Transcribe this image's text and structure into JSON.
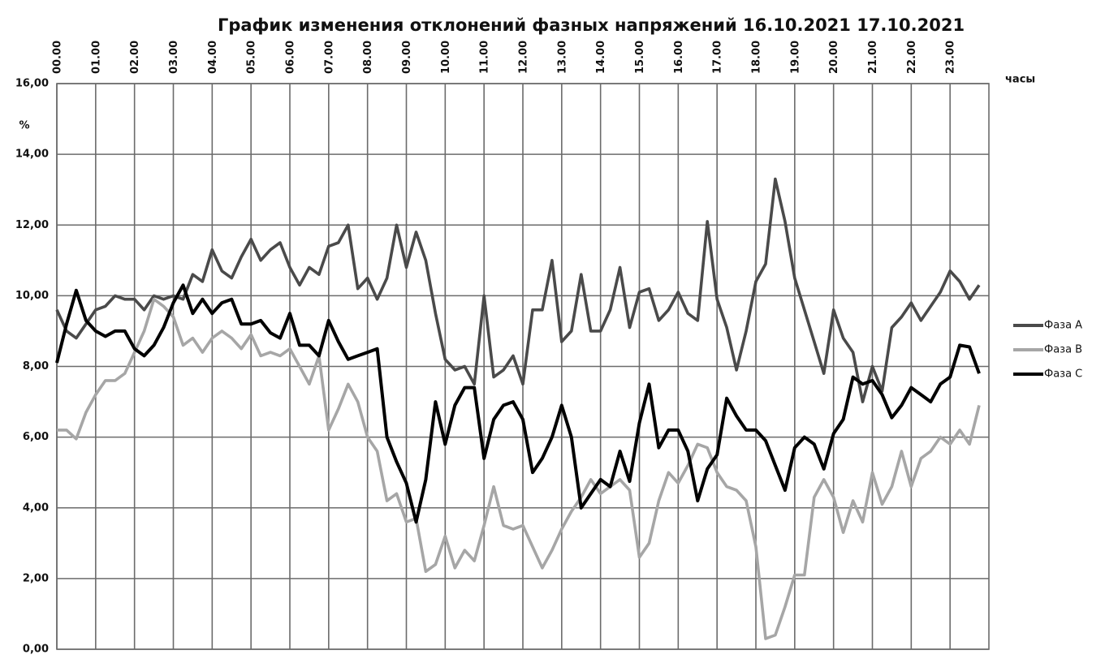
{
  "chart_data": {
    "type": "line",
    "title": "График изменения отклонений фазных напряжений  16.10.2021 17.10.2021",
    "y_label": "%",
    "x_label": "часы",
    "xlim": [
      0,
      24
    ],
    "xticks": [
      {
        "value": 0,
        "label": "00.00"
      },
      {
        "value": 1,
        "label": "01.00"
      },
      {
        "value": 2,
        "label": "02.00"
      },
      {
        "value": 3,
        "label": "03.00"
      },
      {
        "value": 4,
        "label": "04.00"
      },
      {
        "value": 5,
        "label": "05.00"
      },
      {
        "value": 6,
        "label": "06.00"
      },
      {
        "value": 7,
        "label": "07.00"
      },
      {
        "value": 8,
        "label": "08.00"
      },
      {
        "value": 9,
        "label": "09.00"
      },
      {
        "value": 10,
        "label": "10.00"
      },
      {
        "value": 11,
        "label": "11.00"
      },
      {
        "value": 12,
        "label": "12.00"
      },
      {
        "value": 13,
        "label": "13.00"
      },
      {
        "value": 14,
        "label": "14.00"
      },
      {
        "value": 15,
        "label": "15.00"
      },
      {
        "value": 16,
        "label": "16.00"
      },
      {
        "value": 17,
        "label": "17.00"
      },
      {
        "value": 18,
        "label": "18.00"
      },
      {
        "value": 19,
        "label": "19.00"
      },
      {
        "value": 20,
        "label": "20.00"
      },
      {
        "value": 21,
        "label": "21.00"
      },
      {
        "value": 22,
        "label": "22.00"
      },
      {
        "value": 23,
        "label": "23.00"
      }
    ],
    "ylim": [
      0,
      16
    ],
    "yticks": [
      {
        "value": 0,
        "label": "0,00"
      },
      {
        "value": 2,
        "label": "2,00"
      },
      {
        "value": 4,
        "label": "4,00"
      },
      {
        "value": 6,
        "label": "6,00"
      },
      {
        "value": 8,
        "label": "8,00"
      },
      {
        "value": 10,
        "label": "10,00"
      },
      {
        "value": 12,
        "label": "12,00"
      },
      {
        "value": 14,
        "label": "14,00"
      },
      {
        "value": 16,
        "label": "16,00"
      }
    ],
    "grid": true,
    "legend": "right",
    "x": [
      0,
      0.25,
      0.5,
      0.75,
      1,
      1.25,
      1.5,
      1.75,
      2,
      2.25,
      2.5,
      2.75,
      3,
      3.25,
      3.5,
      3.75,
      4,
      4.25,
      4.5,
      4.75,
      5,
      5.25,
      5.5,
      5.75,
      6,
      6.25,
      6.5,
      6.75,
      7,
      7.25,
      7.5,
      7.75,
      8,
      8.25,
      8.5,
      8.75,
      9,
      9.25,
      9.5,
      9.75,
      10,
      10.25,
      10.5,
      10.75,
      11,
      11.25,
      11.5,
      11.75,
      12,
      12.25,
      12.5,
      12.75,
      13,
      13.25,
      13.5,
      13.75,
      14,
      14.25,
      14.5,
      14.75,
      15,
      15.25,
      15.5,
      15.75,
      16,
      16.25,
      16.5,
      16.75,
      17,
      17.25,
      17.5,
      17.75,
      18,
      18.25,
      18.5,
      18.75,
      19,
      19.25,
      19.5,
      19.75,
      20,
      20.25,
      20.5,
      20.75,
      21,
      21.25,
      21.5,
      21.75,
      22,
      22.25,
      22.5,
      22.75,
      23,
      23.25,
      23.5,
      23.75
    ],
    "series": [
      {
        "name": "Фаза А",
        "color": "#4a4a4a",
        "values": [
          9.6,
          9.0,
          8.8,
          9.2,
          9.6,
          9.7,
          10.0,
          9.9,
          9.9,
          9.6,
          10.0,
          9.9,
          10.0,
          9.9,
          10.6,
          10.4,
          11.3,
          10.7,
          10.5,
          11.1,
          11.6,
          11.0,
          11.3,
          11.5,
          10.8,
          10.3,
          10.8,
          10.6,
          11.4,
          11.5,
          12.0,
          10.2,
          10.5,
          9.9,
          10.5,
          12.0,
          10.8,
          11.8,
          11.0,
          9.5,
          8.2,
          7.9,
          8.0,
          7.5,
          10.0,
          7.7,
          7.9,
          8.3,
          7.5,
          9.6,
          9.6,
          11.0,
          8.7,
          9.0,
          10.6,
          9.0,
          9.0,
          9.6,
          10.8,
          9.1,
          10.1,
          10.2,
          9.3,
          9.6,
          10.1,
          9.5,
          9.3,
          12.1,
          9.9,
          9.1,
          7.9,
          9.0,
          10.4,
          10.9,
          13.3,
          12.1,
          10.5,
          9.6,
          8.7,
          7.8,
          9.6,
          8.8,
          8.4,
          7.0,
          8.0,
          7.3,
          9.1,
          9.4,
          9.8,
          9.3,
          9.7,
          10.1,
          10.7,
          10.4,
          9.9,
          10.3
        ]
      },
      {
        "name": "Фаза В",
        "color": "#a6a6a6",
        "values": [
          6.2,
          6.2,
          5.95,
          6.7,
          7.2,
          7.6,
          7.6,
          7.8,
          8.4,
          9.0,
          9.9,
          9.7,
          9.4,
          8.6,
          8.8,
          8.4,
          8.8,
          9.0,
          8.8,
          8.5,
          8.9,
          8.3,
          8.4,
          8.3,
          8.5,
          8.0,
          7.5,
          8.3,
          6.2,
          6.8,
          7.5,
          7.0,
          6.0,
          5.6,
          4.2,
          4.4,
          3.6,
          3.7,
          2.2,
          2.4,
          3.2,
          2.3,
          2.8,
          2.5,
          3.5,
          4.6,
          3.5,
          3.4,
          3.5,
          2.9,
          2.3,
          2.8,
          3.4,
          3.9,
          4.3,
          4.8,
          4.4,
          4.6,
          4.8,
          4.5,
          2.6,
          3.0,
          4.2,
          5.0,
          4.7,
          5.2,
          5.8,
          5.7,
          5.0,
          4.6,
          4.5,
          4.2,
          2.9,
          0.3,
          0.4,
          1.2,
          2.1,
          2.1,
          4.3,
          4.8,
          4.3,
          3.3,
          4.2,
          3.6,
          5.0,
          4.1,
          4.6,
          5.6,
          4.6,
          5.4,
          5.6,
          6.0,
          5.8,
          6.2,
          5.8,
          6.9
        ]
      },
      {
        "name": "Фаза С",
        "color": "#000000",
        "values": [
          8.1,
          9.2,
          10.15,
          9.3,
          9.0,
          8.85,
          9.0,
          9.0,
          8.5,
          8.3,
          8.6,
          9.1,
          9.8,
          10.3,
          9.5,
          9.9,
          9.5,
          9.8,
          9.9,
          9.2,
          9.2,
          9.3,
          8.95,
          8.8,
          9.5,
          8.6,
          8.6,
          8.3,
          9.3,
          8.7,
          8.2,
          8.3,
          8.4,
          8.5,
          6.0,
          5.3,
          4.7,
          3.6,
          4.8,
          7.0,
          5.8,
          6.9,
          7.4,
          7.4,
          5.4,
          6.5,
          6.9,
          7.0,
          6.5,
          5.0,
          5.4,
          6.0,
          6.9,
          6.0,
          4.0,
          4.4,
          4.8,
          4.6,
          5.6,
          4.75,
          6.4,
          7.5,
          5.7,
          6.2,
          6.2,
          5.6,
          4.2,
          5.1,
          5.5,
          7.1,
          6.6,
          6.2,
          6.2,
          5.9,
          5.2,
          4.5,
          5.7,
          6.0,
          5.8,
          5.1,
          6.1,
          6.5,
          7.7,
          7.5,
          7.6,
          7.2,
          6.55,
          6.9,
          7.4,
          7.2,
          7.0,
          7.5,
          7.7,
          8.6,
          8.55,
          7.8
        ]
      }
    ]
  }
}
